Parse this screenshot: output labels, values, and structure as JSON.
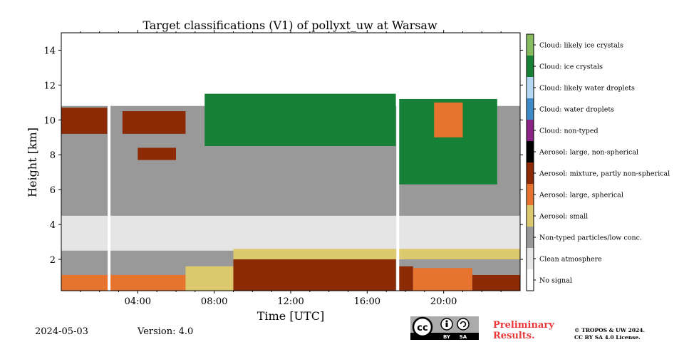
{
  "chart_data": {
    "type": "heatmap",
    "title": "Target classifications (V1) of pollyxt_uw at Warsaw",
    "xlabel": "Time [UTC]",
    "ylabel": "Height [km]",
    "xlim": [
      0,
      24
    ],
    "ylim": [
      0.2,
      15
    ],
    "x_ticks": [
      {
        "value": 4,
        "label": "04:00"
      },
      {
        "value": 8,
        "label": "08:00"
      },
      {
        "value": 12,
        "label": "12:00"
      },
      {
        "value": 16,
        "label": "16:00"
      },
      {
        "value": 20,
        "label": "20:00"
      }
    ],
    "y_ticks": [
      {
        "value": 2,
        "label": "2"
      },
      {
        "value": 4,
        "label": "4"
      },
      {
        "value": 6,
        "label": "6"
      },
      {
        "value": 8,
        "label": "8"
      },
      {
        "value": 10,
        "label": "10"
      },
      {
        "value": 12,
        "label": "12"
      },
      {
        "value": 14,
        "label": "14"
      }
    ],
    "classes": [
      {
        "name": "No signal",
        "color": "#ffffff"
      },
      {
        "name": "Clean atmosphere",
        "color": "#e5e5e5"
      },
      {
        "name": "Non-typed particles/low conc.",
        "color": "#999999"
      },
      {
        "name": "Aerosol: small",
        "color": "#dcc86d"
      },
      {
        "name": "Aerosol: large, spherical",
        "color": "#e6742e"
      },
      {
        "name": "Aerosol: mixture, partly non-spherical",
        "color": "#8c2a06"
      },
      {
        "name": "Aerosol: large, non-spherical",
        "color": "#000000"
      },
      {
        "name": "Cloud: non-typed",
        "color": "#8b2286"
      },
      {
        "name": "Cloud: water droplets",
        "color": "#3d8bc8"
      },
      {
        "name": "Cloud: likely water droplets",
        "color": "#b3d7f4"
      },
      {
        "name": "Cloud: ice crystals",
        "color": "#168036"
      },
      {
        "name": "Cloud: likely ice crystals",
        "color": "#86bc5e"
      }
    ],
    "regions": [
      {
        "class": "Non-typed particles/low conc.",
        "x": [
          0,
          24
        ],
        "y": [
          0.2,
          10.8
        ]
      },
      {
        "class": "Clean atmosphere",
        "x": [
          0,
          24
        ],
        "y": [
          2.5,
          4.5
        ]
      },
      {
        "class": "Aerosol: large, spherical",
        "x": [
          0,
          6.5
        ],
        "y": [
          0.2,
          1.1
        ]
      },
      {
        "class": "Aerosol: small",
        "x": [
          6.5,
          9
        ],
        "y": [
          0.2,
          1.6
        ]
      },
      {
        "class": "Aerosol: mixture, partly non-spherical",
        "x": [
          9,
          17.5
        ],
        "y": [
          0.2,
          2.3
        ]
      },
      {
        "class": "Aerosol: small",
        "x": [
          9,
          24
        ],
        "y": [
          2.0,
          2.6
        ]
      },
      {
        "class": "Aerosol: mixture, partly non-spherical",
        "x": [
          17.6,
          18.4
        ],
        "y": [
          0.2,
          1.6
        ]
      },
      {
        "class": "Aerosol: large, spherical",
        "x": [
          18.4,
          21.5
        ],
        "y": [
          0.2,
          1.5
        ]
      },
      {
        "class": "Aerosol: mixture, partly non-spherical",
        "x": [
          21.5,
          24
        ],
        "y": [
          0.2,
          1.1
        ]
      },
      {
        "class": "Cloud: ice crystals",
        "x": [
          7.5,
          17.5
        ],
        "y": [
          8.5,
          11.5
        ]
      },
      {
        "class": "Cloud: ice crystals",
        "x": [
          17.6,
          22.8
        ],
        "y": [
          6.3,
          11.2
        ]
      },
      {
        "class": "Aerosol: large, spherical",
        "x": [
          19.5,
          21
        ],
        "y": [
          9.0,
          11.0
        ]
      },
      {
        "class": "Aerosol: mixture, partly non-spherical",
        "x": [
          0,
          2.4
        ],
        "y": [
          9.2,
          10.7
        ]
      },
      {
        "class": "Aerosol: mixture, partly non-spherical",
        "x": [
          3.2,
          6.5
        ],
        "y": [
          9.2,
          10.5
        ]
      },
      {
        "class": "Aerosol: mixture, partly non-spherical",
        "x": [
          4,
          6
        ],
        "y": [
          7.7,
          8.4
        ]
      }
    ],
    "data_gaps_utc": [
      2.5,
      17.6
    ],
    "grid": false,
    "legend": "right colorbar"
  },
  "footer": {
    "date": "2024-05-03",
    "version": "Version: 4.0",
    "preliminary": [
      "Preliminary",
      "Results."
    ],
    "copyright": [
      "© TROPOS & UW 2024.",
      "CC BY SA 4.0 License."
    ],
    "cc_badge": [
      "BY",
      "SA"
    ]
  }
}
